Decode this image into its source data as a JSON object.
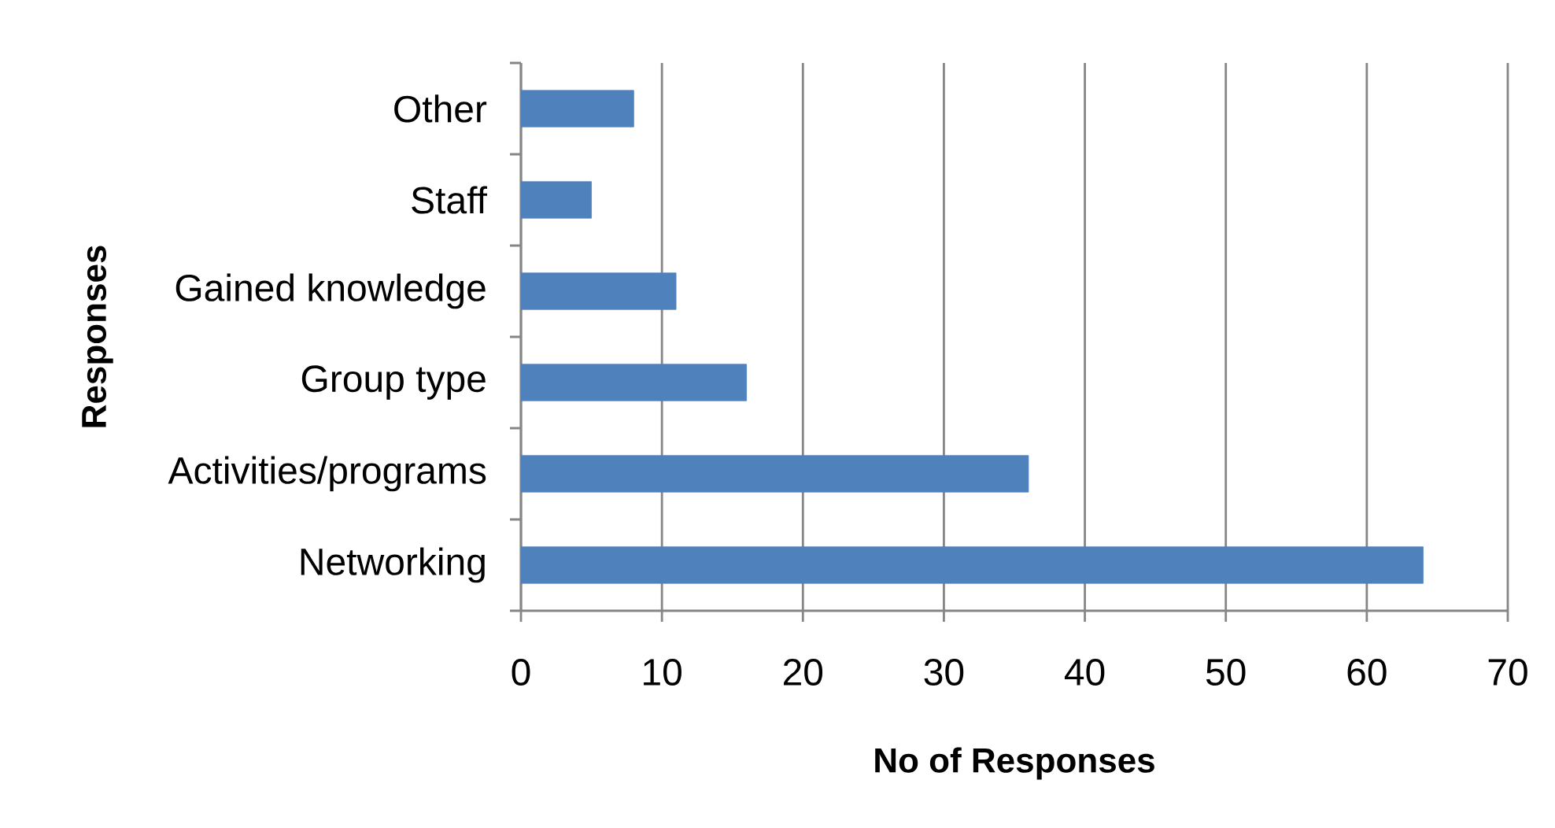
{
  "chart_data": {
    "type": "bar",
    "orientation": "horizontal",
    "categories": [
      "Other",
      "Staff",
      "Gained knowledge",
      "Group type",
      "Activities/programs",
      "Networking"
    ],
    "values": [
      8,
      5,
      11,
      16,
      36,
      64
    ],
    "color": "#4f81bd",
    "xlim": [
      0,
      70
    ],
    "xticks": [
      0,
      10,
      20,
      30,
      40,
      50,
      60,
      70
    ],
    "xlabel": "No of Responses",
    "ylabel": "Responses",
    "grid": "x"
  }
}
